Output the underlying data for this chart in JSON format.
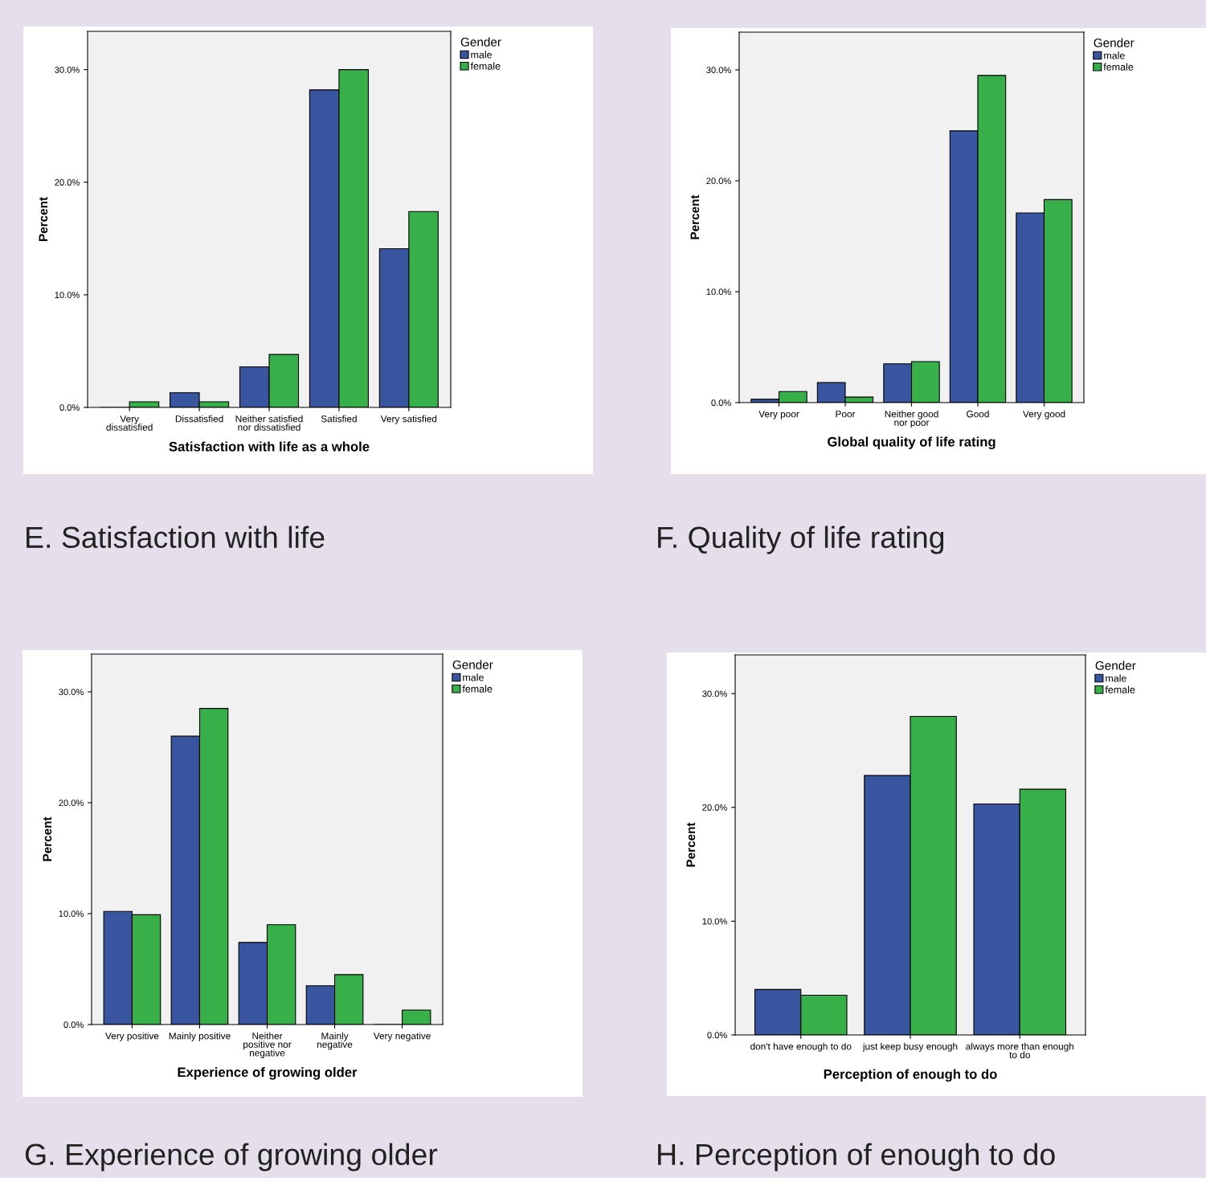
{
  "chart_data": [
    {
      "type": "bar",
      "xlabel": "Satisfaction with life as a whole",
      "ylabel": "Percent",
      "categories": [
        "Very\ndissatisfied",
        "Dissatisfied",
        "Neither satisfied\nnor dissatisfied",
        "Satisfied",
        "Very satisfied"
      ],
      "series": [
        {
          "name": "male",
          "color": "#3a55a0",
          "values": [
            0,
            1.3,
            3.6,
            28.2,
            14.1
          ]
        },
        {
          "name": "female",
          "color": "#38b04a",
          "values": [
            0.5,
            0.5,
            4.7,
            30.0,
            17.4
          ]
        }
      ],
      "ylim": [
        0,
        33.4
      ],
      "yticks": [
        {
          "value": 0,
          "label": "0.0%"
        },
        {
          "value": 10,
          "label": "10.0%"
        },
        {
          "value": 20,
          "label": "20.0%"
        },
        {
          "value": 30,
          "label": "30.0%"
        }
      ],
      "legend": "top right",
      "legend_title": "Gender",
      "annotations": [
        "E. Satisfaction with life"
      ]
    },
    {
      "type": "bar",
      "xlabel": "Global quality of life rating",
      "ylabel": "Percent",
      "categories": [
        "Very poor",
        "Poor",
        "Neither good\nnor poor",
        "Good",
        "Very good"
      ],
      "series": [
        {
          "name": "male",
          "color": "#3a55a0",
          "values": [
            0.3,
            1.8,
            3.5,
            24.5,
            17.1
          ]
        },
        {
          "name": "female",
          "color": "#38b04a",
          "values": [
            1.0,
            0.5,
            3.7,
            29.5,
            18.3
          ]
        }
      ],
      "ylim": [
        0,
        33.4
      ],
      "yticks": [
        {
          "value": 0,
          "label": "0.0%"
        },
        {
          "value": 10,
          "label": "10.0%"
        },
        {
          "value": 20,
          "label": "20.0%"
        },
        {
          "value": 30,
          "label": "30.0%"
        }
      ],
      "legend": "top right",
      "legend_title": "Gender",
      "annotations": [
        "F. Quality of life rating"
      ]
    },
    {
      "type": "bar",
      "xlabel": "Experience of growing older",
      "ylabel": "Percent",
      "categories": [
        "Very positive",
        "Mainly positive",
        "Neither\npositive nor\nnegative",
        "Mainly\nnegative",
        "Very negative"
      ],
      "series": [
        {
          "name": "male",
          "color": "#3a55a0",
          "values": [
            10.2,
            26.0,
            7.4,
            3.5,
            0
          ]
        },
        {
          "name": "female",
          "color": "#38b04a",
          "values": [
            9.9,
            28.5,
            9.0,
            4.5,
            1.3
          ]
        }
      ],
      "ylim": [
        0,
        33.4
      ],
      "yticks": [
        {
          "value": 0,
          "label": "0.0%"
        },
        {
          "value": 10,
          "label": "10.0%"
        },
        {
          "value": 20,
          "label": "20.0%"
        },
        {
          "value": 30,
          "label": "30.0%"
        }
      ],
      "legend": "top right",
      "legend_title": "Gender",
      "annotations": [
        "G. Experience of growing older"
      ]
    },
    {
      "type": "bar",
      "xlabel": "Perception of enough to do",
      "ylabel": "Percent",
      "categories": [
        "don't have enough to do",
        "just keep busy enough",
        "always more than enough\nto do"
      ],
      "series": [
        {
          "name": "male",
          "color": "#3a55a0",
          "values": [
            4.0,
            22.8,
            20.3
          ]
        },
        {
          "name": "female",
          "color": "#38b04a",
          "values": [
            3.5,
            28.0,
            21.6
          ]
        }
      ],
      "ylim": [
        0,
        33.4
      ],
      "yticks": [
        {
          "value": 0,
          "label": "0.0%"
        },
        {
          "value": 10,
          "label": "10.0%"
        },
        {
          "value": 20,
          "label": "20.0%"
        },
        {
          "value": 30,
          "label": "30.0%"
        }
      ],
      "legend": "top right",
      "legend_title": "Gender",
      "annotations": [
        "H. Perception of enough to do"
      ]
    }
  ]
}
